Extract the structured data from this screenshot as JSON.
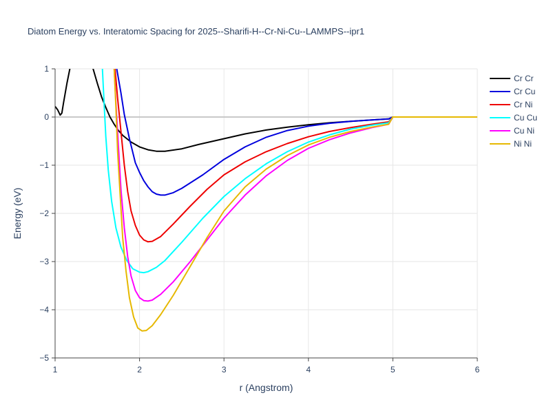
{
  "chart_data": {
    "type": "line",
    "title": "Diatom Energy vs. Interatomic Spacing for 2025--Sharifi-H--Cr-Ni-Cu--LAMMPS--ipr1",
    "xlabel": "r (Angstrom)",
    "ylabel": "Energy (eV)",
    "xlim": [
      1,
      6
    ],
    "ylim": [
      -5,
      1
    ],
    "xticks": [
      1,
      2,
      3,
      4,
      5,
      6
    ],
    "yticks": [
      1,
      0,
      -1,
      -2,
      -3,
      -4,
      -5
    ],
    "ytick_labels": [
      "1",
      "0",
      "−1",
      "−2",
      "−3",
      "−4",
      "−5"
    ],
    "grid": true,
    "legend_position": "top-right",
    "series": [
      {
        "name": "Cr Cr",
        "color": "#000000",
        "points": [
          [
            1.0,
            0.22
          ],
          [
            1.03,
            0.15
          ],
          [
            1.06,
            0.04
          ],
          [
            1.08,
            0.08
          ],
          [
            1.1,
            0.3
          ],
          [
            1.14,
            0.7
          ],
          [
            1.18,
            1.05
          ],
          [
            1.4,
            1.3
          ],
          [
            1.45,
            1.0
          ],
          [
            1.5,
            0.7
          ],
          [
            1.55,
            0.42
          ],
          [
            1.6,
            0.2
          ],
          [
            1.65,
            0.0
          ],
          [
            1.7,
            -0.15
          ],
          [
            1.75,
            -0.28
          ],
          [
            1.8,
            -0.38
          ],
          [
            1.9,
            -0.52
          ],
          [
            2.0,
            -0.62
          ],
          [
            2.1,
            -0.68
          ],
          [
            2.2,
            -0.71
          ],
          [
            2.3,
            -0.71
          ],
          [
            2.5,
            -0.66
          ],
          [
            2.7,
            -0.57
          ],
          [
            3.0,
            -0.45
          ],
          [
            3.25,
            -0.35
          ],
          [
            3.5,
            -0.27
          ],
          [
            3.75,
            -0.21
          ],
          [
            4.0,
            -0.16
          ],
          [
            4.25,
            -0.12
          ],
          [
            4.5,
            -0.09
          ],
          [
            4.75,
            -0.06
          ],
          [
            4.95,
            -0.04
          ],
          [
            5.0,
            0.0
          ],
          [
            6.0,
            0.0
          ]
        ]
      },
      {
        "name": "Cr Cu",
        "color": "#0000dd",
        "points": [
          [
            1.73,
            1.0
          ],
          [
            1.78,
            0.5
          ],
          [
            1.82,
            0.05
          ],
          [
            1.88,
            -0.45
          ],
          [
            1.95,
            -0.95
          ],
          [
            2.0,
            -1.15
          ],
          [
            2.05,
            -1.32
          ],
          [
            2.1,
            -1.45
          ],
          [
            2.15,
            -1.55
          ],
          [
            2.2,
            -1.6
          ],
          [
            2.25,
            -1.62
          ],
          [
            2.3,
            -1.62
          ],
          [
            2.4,
            -1.57
          ],
          [
            2.5,
            -1.48
          ],
          [
            2.75,
            -1.2
          ],
          [
            3.0,
            -0.88
          ],
          [
            3.25,
            -0.62
          ],
          [
            3.5,
            -0.42
          ],
          [
            3.75,
            -0.28
          ],
          [
            4.0,
            -0.19
          ],
          [
            4.25,
            -0.13
          ],
          [
            4.5,
            -0.09
          ],
          [
            4.75,
            -0.06
          ],
          [
            4.95,
            -0.04
          ],
          [
            5.0,
            0.0
          ]
        ]
      },
      {
        "name": "Cr Ni",
        "color": "#ee0000",
        "points": [
          [
            1.71,
            1.0
          ],
          [
            1.74,
            0.4
          ],
          [
            1.78,
            -0.3
          ],
          [
            1.82,
            -1.0
          ],
          [
            1.86,
            -1.55
          ],
          [
            1.9,
            -1.95
          ],
          [
            1.95,
            -2.25
          ],
          [
            2.0,
            -2.45
          ],
          [
            2.05,
            -2.55
          ],
          [
            2.1,
            -2.59
          ],
          [
            2.15,
            -2.58
          ],
          [
            2.25,
            -2.48
          ],
          [
            2.4,
            -2.22
          ],
          [
            2.6,
            -1.85
          ],
          [
            2.8,
            -1.5
          ],
          [
            3.0,
            -1.2
          ],
          [
            3.25,
            -0.93
          ],
          [
            3.5,
            -0.72
          ],
          [
            3.75,
            -0.55
          ],
          [
            4.0,
            -0.41
          ],
          [
            4.25,
            -0.3
          ],
          [
            4.5,
            -0.22
          ],
          [
            4.75,
            -0.15
          ],
          [
            4.95,
            -0.1
          ],
          [
            5.0,
            0.0
          ]
        ]
      },
      {
        "name": "Cu Cu",
        "color": "#00ffff",
        "points": [
          [
            1.56,
            1.0
          ],
          [
            1.58,
            0.3
          ],
          [
            1.6,
            -0.4
          ],
          [
            1.63,
            -1.1
          ],
          [
            1.67,
            -1.75
          ],
          [
            1.72,
            -2.3
          ],
          [
            1.78,
            -2.7
          ],
          [
            1.85,
            -2.98
          ],
          [
            1.92,
            -3.15
          ],
          [
            2.0,
            -3.22
          ],
          [
            2.05,
            -3.23
          ],
          [
            2.1,
            -3.21
          ],
          [
            2.2,
            -3.12
          ],
          [
            2.3,
            -2.98
          ],
          [
            2.5,
            -2.6
          ],
          [
            2.75,
            -2.1
          ],
          [
            3.0,
            -1.65
          ],
          [
            3.25,
            -1.28
          ],
          [
            3.5,
            -0.97
          ],
          [
            3.75,
            -0.72
          ],
          [
            4.0,
            -0.52
          ],
          [
            4.25,
            -0.37
          ],
          [
            4.5,
            -0.25
          ],
          [
            4.75,
            -0.17
          ],
          [
            4.95,
            -0.12
          ],
          [
            5.0,
            0.0
          ]
        ]
      },
      {
        "name": "Cu Ni",
        "color": "#ff00ff",
        "points": [
          [
            1.7,
            1.0
          ],
          [
            1.72,
            0.3
          ],
          [
            1.75,
            -0.6
          ],
          [
            1.78,
            -1.5
          ],
          [
            1.82,
            -2.3
          ],
          [
            1.86,
            -2.9
          ],
          [
            1.9,
            -3.3
          ],
          [
            1.95,
            -3.6
          ],
          [
            2.0,
            -3.75
          ],
          [
            2.05,
            -3.81
          ],
          [
            2.1,
            -3.82
          ],
          [
            2.15,
            -3.8
          ],
          [
            2.25,
            -3.68
          ],
          [
            2.4,
            -3.42
          ],
          [
            2.6,
            -3.0
          ],
          [
            2.8,
            -2.55
          ],
          [
            3.0,
            -2.1
          ],
          [
            3.25,
            -1.62
          ],
          [
            3.5,
            -1.22
          ],
          [
            3.75,
            -0.9
          ],
          [
            4.0,
            -0.65
          ],
          [
            4.25,
            -0.47
          ],
          [
            4.5,
            -0.33
          ],
          [
            4.75,
            -0.22
          ],
          [
            4.95,
            -0.15
          ],
          [
            5.0,
            0.0
          ]
        ]
      },
      {
        "name": "Ni Ni",
        "color": "#e6b800",
        "points": [
          [
            1.7,
            1.0
          ],
          [
            1.72,
            0.2
          ],
          [
            1.74,
            -0.7
          ],
          [
            1.77,
            -1.6
          ],
          [
            1.8,
            -2.5
          ],
          [
            1.84,
            -3.2
          ],
          [
            1.88,
            -3.75
          ],
          [
            1.93,
            -4.15
          ],
          [
            1.98,
            -4.38
          ],
          [
            2.03,
            -4.44
          ],
          [
            2.08,
            -4.43
          ],
          [
            2.15,
            -4.33
          ],
          [
            2.25,
            -4.1
          ],
          [
            2.4,
            -3.7
          ],
          [
            2.6,
            -3.1
          ],
          [
            2.8,
            -2.5
          ],
          [
            3.0,
            -1.95
          ],
          [
            3.25,
            -1.45
          ],
          [
            3.5,
            -1.08
          ],
          [
            3.75,
            -0.8
          ],
          [
            4.0,
            -0.58
          ],
          [
            4.25,
            -0.42
          ],
          [
            4.5,
            -0.3
          ],
          [
            4.75,
            -0.21
          ],
          [
            4.95,
            -0.15
          ],
          [
            5.0,
            0.0
          ],
          [
            6.0,
            0.0
          ]
        ]
      }
    ]
  }
}
